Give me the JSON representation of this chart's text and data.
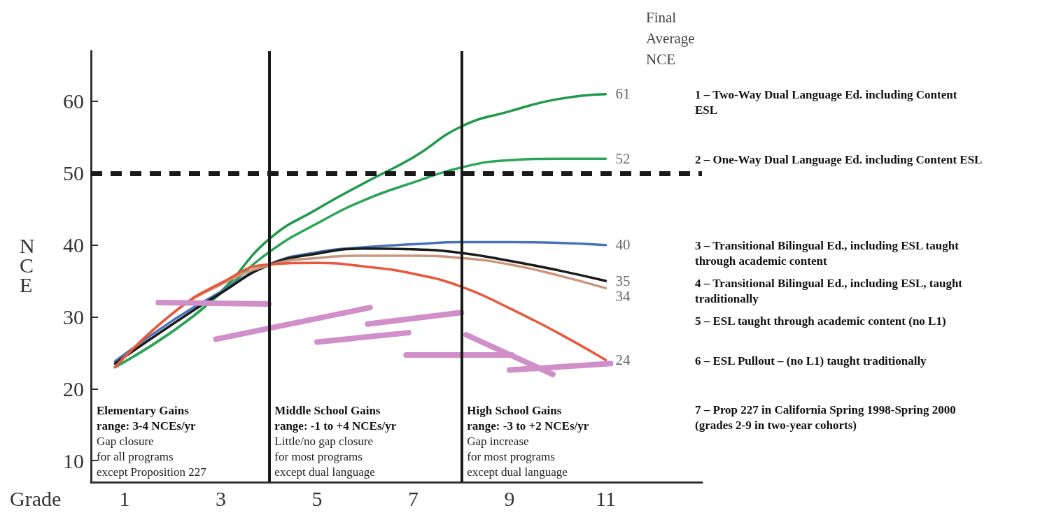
{
  "chart_data": {
    "type": "line",
    "xlabel": "Grade",
    "ylabel": "NCE",
    "legend_title": "Final Average NCE",
    "legend": "right",
    "x": [
      0.8,
      2,
      3,
      4,
      5,
      6,
      7,
      8,
      9,
      10,
      11
    ],
    "xlim": [
      0.3,
      13
    ],
    "xticks": [
      1,
      3,
      5,
      7,
      9,
      11
    ],
    "ylim": [
      7,
      67
    ],
    "yticks": [
      10,
      20,
      30,
      40,
      50,
      60
    ],
    "series": [
      {
        "name": "1 – Two-Way Dual Language Ed. including Content ESL",
        "color": "#1f9a4a",
        "values": [
          23,
          28,
          33.5,
          40.8,
          45,
          48.7,
          52.2,
          56.5,
          58.6,
          60.3,
          61
        ],
        "value_labels": [
          null,
          null,
          null,
          null,
          null,
          null,
          null,
          null,
          null,
          null,
          "61"
        ]
      },
      {
        "name": "2 – One-Way Dual Language Ed. including Content ESL",
        "color": "#2aa557",
        "values": [
          23,
          28,
          33.3,
          39,
          43,
          46.3,
          48.7,
          50.8,
          51.8,
          52,
          52
        ],
        "value_labels": [
          null,
          null,
          null,
          null,
          null,
          null,
          null,
          null,
          null,
          null,
          "52"
        ]
      },
      {
        "name": "3 – Transitional Bilingual Ed., including ESL taught through academic content",
        "color": "#4a72b8",
        "values": [
          23.8,
          29.5,
          33.5,
          37.3,
          39,
          39.7,
          40.1,
          40.4,
          40.4,
          40.3,
          40
        ],
        "value_labels": [
          null,
          null,
          null,
          null,
          null,
          null,
          null,
          null,
          null,
          null,
          "40"
        ]
      },
      {
        "name": "4 – Transitional Bilingual Ed., including ESL, taught traditionally",
        "color": "#1a1a1a",
        "values": [
          23.5,
          29,
          33.3,
          37.2,
          38.8,
          39.5,
          39.4,
          38.9,
          37.8,
          36.5,
          35
        ],
        "value_labels": [
          null,
          null,
          null,
          null,
          null,
          null,
          null,
          null,
          null,
          null,
          "35"
        ]
      },
      {
        "name": "5 – ESL taught through academic content (no L1)",
        "color": "#c9967a",
        "values": [
          23,
          30.5,
          34.5,
          37.2,
          38.2,
          38.5,
          38.5,
          38.2,
          37.3,
          35.8,
          34
        ],
        "value_labels": [
          null,
          null,
          null,
          null,
          null,
          null,
          null,
          null,
          null,
          null,
          "34"
        ]
      },
      {
        "name": "6 – ESL Pullout – (no L1) taught traditionally",
        "color": "#e8583d",
        "values": [
          23,
          30.5,
          34.7,
          37.3,
          37.5,
          37,
          36,
          34.2,
          31.2,
          27.8,
          24
        ],
        "value_labels": [
          null,
          null,
          null,
          null,
          null,
          null,
          null,
          null,
          null,
          null,
          "24"
        ]
      },
      {
        "name": "7 – Prop 227 in California Spring 1998-Spring 2000 (grades 2-9 in two-year cohorts)",
        "color": "#d08fc8",
        "x": [
          1.7,
          4,
          null,
          2.9,
          6.1,
          null,
          5,
          6.9,
          null,
          6.05,
          8,
          null,
          6.85,
          9.05,
          null,
          8.1,
          9.9,
          null,
          9,
          11.1
        ],
        "values": [
          32,
          31.8,
          null,
          26.9,
          31.3,
          null,
          26.5,
          27.8,
          null,
          29,
          30.6,
          null,
          24.7,
          24.7,
          null,
          27.5,
          22,
          null,
          22.6,
          23.5
        ]
      }
    ],
    "ref_lines": [
      {
        "axis": "x",
        "value": 4,
        "color": "#1a1a1a",
        "line_style": "solid"
      },
      {
        "axis": "x",
        "value": 8,
        "color": "#1a1a1a",
        "line_style": "solid"
      },
      {
        "axis": "y",
        "value": 50,
        "color": "#1a1a1a",
        "line_style": "dashed"
      }
    ],
    "annotations": [
      "Elementary Gains\nrange: 3-4 NCEs/yr\nGap closure\nfor all programs\nexcept Proposition 227",
      "Middle School Gains\nrange: -1 to +4 NCEs/yr\nLittle/no gap closure\nfor most programs\nexcept dual language",
      "High School Gains\nrange: -3 to +2 NCEs/yr\nGap increase\nfor most programs\nexcept dual language"
    ]
  }
}
